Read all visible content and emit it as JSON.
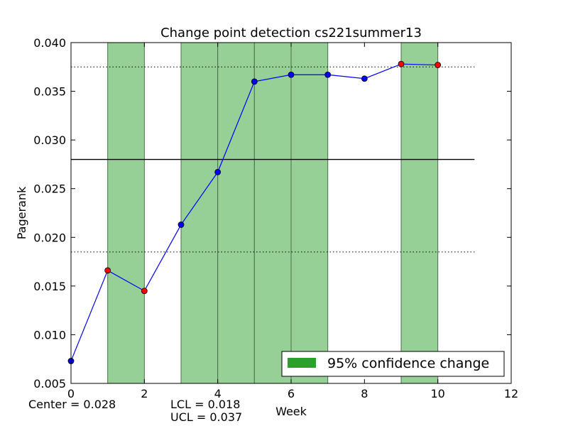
{
  "chart_data": {
    "type": "line",
    "title": "Change point detection cs221summer13",
    "xlabel": "Week",
    "ylabel": "Pagerank",
    "xlim": [
      0,
      12
    ],
    "ylim": [
      0.005,
      0.04
    ],
    "xticks": [
      "0",
      "2",
      "4",
      "6",
      "8",
      "10",
      "12"
    ],
    "yticks": [
      "0.005",
      "0.010",
      "0.015",
      "0.020",
      "0.025",
      "0.030",
      "0.035",
      "0.040"
    ],
    "grid": false,
    "legend_position": "lower-right",
    "legend_label": "95% confidence change",
    "series": [
      {
        "x": [
          0,
          1,
          2,
          3,
          4,
          5,
          6,
          7,
          8,
          9,
          10
        ],
        "values": [
          0.0073,
          0.0166,
          0.0145,
          0.0213,
          0.0267,
          0.036,
          0.0367,
          0.0367,
          0.0363,
          0.0378,
          0.0377
        ],
        "change_points": [
          false,
          true,
          true,
          false,
          false,
          false,
          false,
          false,
          false,
          true,
          true
        ],
        "color": "#0000ff"
      }
    ],
    "confidence_regions": [
      [
        1,
        2
      ],
      [
        3,
        4
      ],
      [
        4,
        5
      ],
      [
        5,
        6
      ],
      [
        6,
        7
      ],
      [
        9,
        10
      ]
    ],
    "center_line": 0.028,
    "lcl": 0.0185,
    "ucl": 0.0375,
    "control_line_xmax": 11,
    "colors": {
      "line": "#0000ff",
      "point": "#0000ff",
      "change_point": "#ff0000",
      "region_fill": "#96d096",
      "region_edge": "#4a6e4a",
      "legend_patch": "#2ca02c"
    }
  },
  "stats": {
    "center": "Center = 0.028",
    "lcl": "LCL = 0.018",
    "ucl": "UCL = 0.037"
  }
}
